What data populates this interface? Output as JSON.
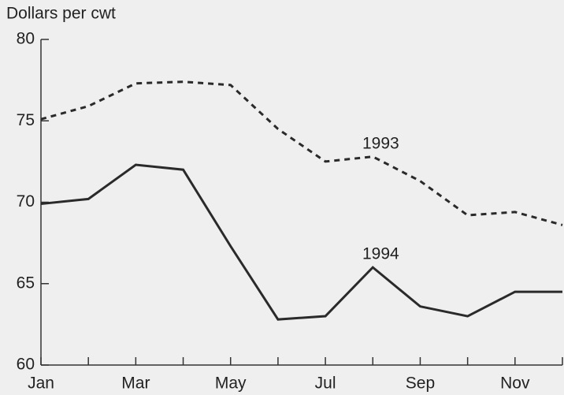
{
  "chart_data": {
    "type": "line",
    "y_label": "Dollars per cwt",
    "categories": [
      "Jan",
      null,
      "Mar",
      null,
      "May",
      null,
      "Jul",
      null,
      "Sep",
      null,
      "Nov",
      null
    ],
    "series": [
      {
        "name": "1993",
        "color": "#2a2a2a",
        "dashed": true,
        "values": [
          75.1,
          75.9,
          77.3,
          77.4,
          77.2,
          74.5,
          72.5,
          72.8,
          71.3,
          69.2,
          69.4,
          68.6
        ]
      },
      {
        "name": "1994",
        "color": "#2a2a2a",
        "dashed": false,
        "values": [
          69.9,
          70.2,
          72.3,
          72.0,
          67.3,
          62.8,
          63.0,
          66.0,
          63.6,
          63.0,
          64.5,
          64.5
        ]
      }
    ],
    "ylim": [
      60,
      80
    ],
    "yticks": [
      60,
      65,
      70,
      75,
      80
    ],
    "grid": false
  }
}
